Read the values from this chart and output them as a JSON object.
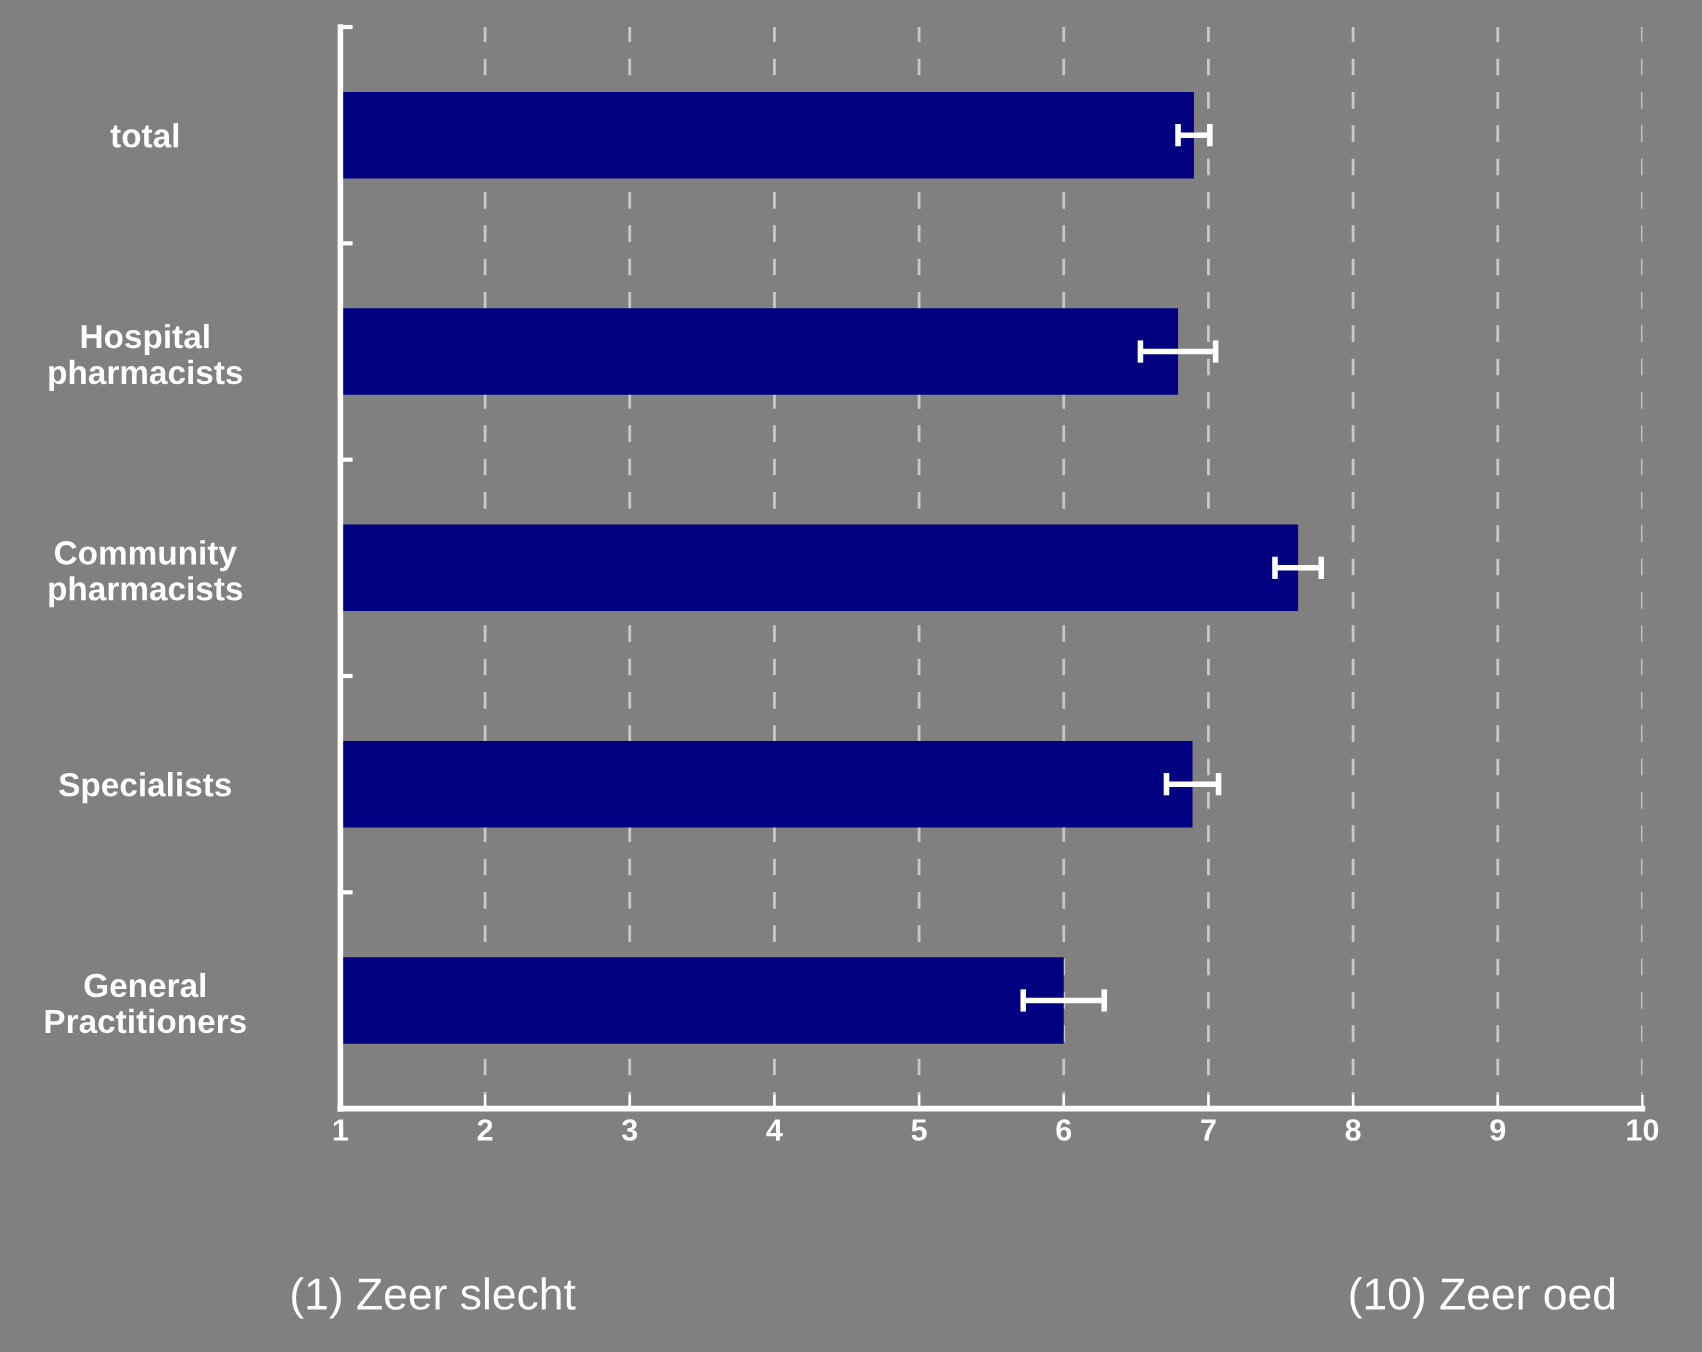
{
  "chart_data": {
    "type": "bar",
    "orientation": "horizontal",
    "categories": [
      "total",
      "Hospital\npharmacists",
      "Community\npharmacists",
      "Specialists",
      "General\nPractitioners"
    ],
    "values": [
      6.9,
      6.79,
      7.62,
      6.89,
      6.0
    ],
    "errors": [
      0.11,
      0.26,
      0.16,
      0.18,
      0.28
    ],
    "color": "#000080",
    "xlim": [
      1,
      10
    ],
    "xticks": [
      1,
      2,
      3,
      4,
      5,
      6,
      7,
      8,
      9,
      10
    ],
    "grid": "x",
    "annotations": [
      "(1) Zeer slecht",
      "(10) Zeer oed"
    ]
  }
}
